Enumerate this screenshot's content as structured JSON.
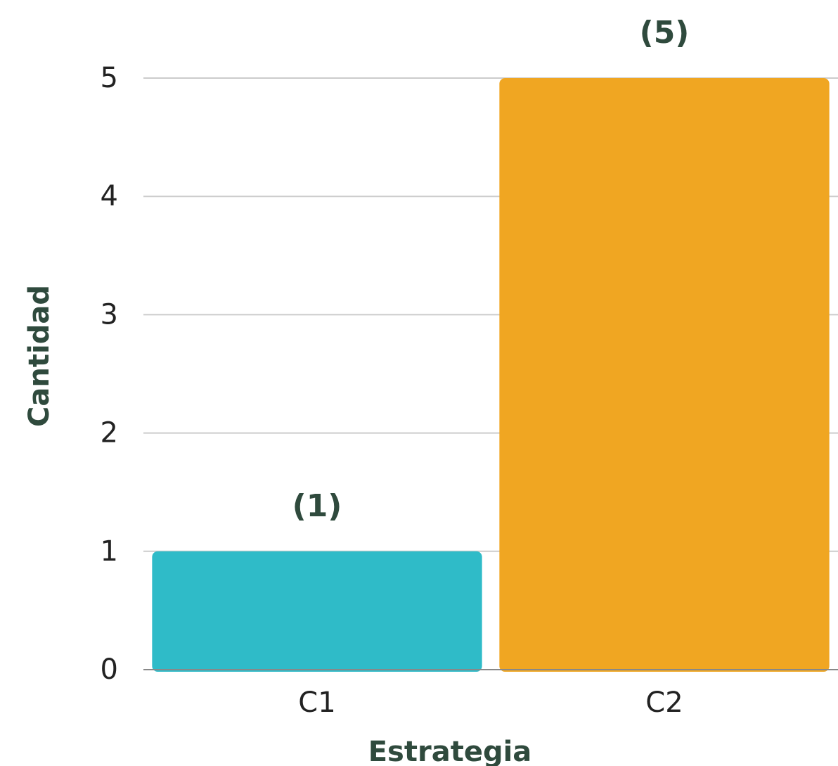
{
  "chart_data": {
    "type": "bar",
    "categories": [
      "C1",
      "C2"
    ],
    "values": [
      1,
      5
    ],
    "data_labels": [
      "(1)",
      "(5)"
    ],
    "colors": [
      "#2FBBC8",
      "#F0A622"
    ],
    "title": "",
    "xlabel": "Estrategia",
    "ylabel": "Cantidad",
    "ylim": [
      0,
      5
    ],
    "yticks": [
      "0",
      "1",
      "2",
      "3",
      "4",
      "5"
    ],
    "grid": true,
    "legend": "none"
  }
}
